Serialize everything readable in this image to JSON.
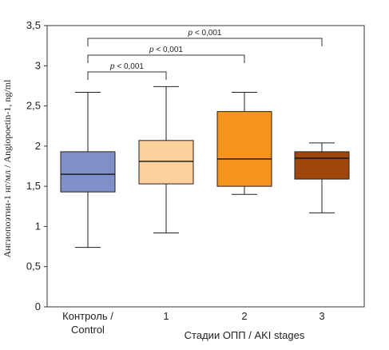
{
  "chart_data": {
    "type": "boxplot",
    "ylabel": "Ангиопоэтин-1 нг/мл / Angiopoetin-1, ng/ml",
    "ylim": [
      0,
      3.5
    ],
    "yticks": [
      "0",
      "0,5",
      "1",
      "1,5",
      "2",
      "2,5",
      "3",
      "3,5"
    ],
    "ytick_values": [
      0,
      0.5,
      1,
      1.5,
      2,
      2.5,
      3,
      3.5
    ],
    "categories": [
      [
        "Контроль /",
        "Control"
      ],
      [
        "1"
      ],
      [
        "2"
      ],
      [
        "3"
      ]
    ],
    "x_group_label": "Стадии ОПП / AKI stages",
    "boxes": [
      {
        "name": "Контроль / Control",
        "min": 0.74,
        "q1": 1.43,
        "median": 1.65,
        "q3": 1.93,
        "max": 2.67,
        "color": "#7f8fc8"
      },
      {
        "name": "1",
        "min": 0.92,
        "q1": 1.53,
        "median": 1.81,
        "q3": 2.07,
        "max": 2.74,
        "color": "#fdd09b"
      },
      {
        "name": "2",
        "min": 1.4,
        "q1": 1.5,
        "median": 1.84,
        "q3": 2.43,
        "max": 2.67,
        "color": "#f7941d"
      },
      {
        "name": "3",
        "min": 1.17,
        "q1": 1.59,
        "median": 1.85,
        "q3": 1.93,
        "max": 2.04,
        "color": "#a0460c"
      }
    ],
    "significance": [
      {
        "from": 0,
        "to": 1,
        "label_p": "p",
        "label_rest": " < 0,001"
      },
      {
        "from": 0,
        "to": 2,
        "label_p": "p",
        "label_rest": " < 0,001"
      },
      {
        "from": 0,
        "to": 3,
        "label_p": "p",
        "label_rest": " < 0,001"
      }
    ],
    "grid": false,
    "legend": "none"
  }
}
